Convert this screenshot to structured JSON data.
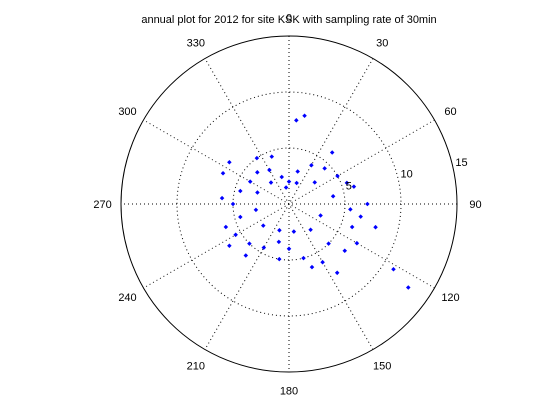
{
  "chart_data": {
    "type": "scatter",
    "subtype": "polar",
    "title": "annual plot for 2012 for site KSK with sampling rate of 30min",
    "theta_ticks": [
      "0",
      "30",
      "60",
      "90",
      "120",
      "150",
      "180",
      "210",
      "240",
      "270",
      "300",
      "330"
    ],
    "r_ticks": [
      "5",
      "10",
      "15"
    ],
    "r_max": 15,
    "angle_convention": "clockwise from north (0 at top, 90 at right)",
    "marker": "point",
    "series": [
      {
        "color": "#0000ff",
        "points_theta_r": [
          [
            0,
            2
          ],
          [
            15,
            3
          ],
          [
            30,
            4
          ],
          [
            45,
            4.5
          ],
          [
            60,
            5
          ],
          [
            75,
            6
          ],
          [
            90,
            7
          ],
          [
            100,
            6.5
          ],
          [
            110,
            6
          ],
          [
            120,
            7
          ],
          [
            125,
            13
          ],
          [
            122,
            11
          ],
          [
            135,
            5
          ],
          [
            150,
            6
          ],
          [
            165,
            5
          ],
          [
            180,
            4
          ],
          [
            195,
            3.5
          ],
          [
            210,
            4.5
          ],
          [
            225,
            5
          ],
          [
            240,
            5.5
          ],
          [
            255,
            4.5
          ],
          [
            270,
            5
          ],
          [
            285,
            4.5
          ],
          [
            300,
            4
          ],
          [
            315,
            4
          ],
          [
            330,
            3.5
          ],
          [
            345,
            2.5
          ],
          [
            20,
            2
          ],
          [
            50,
            3
          ],
          [
            80,
            4
          ],
          [
            110,
            3
          ],
          [
            140,
            3
          ],
          [
            170,
            2.5
          ],
          [
            200,
            2.5
          ],
          [
            230,
            3
          ],
          [
            260,
            3
          ],
          [
            290,
            3
          ],
          [
            320,
            2.5
          ],
          [
            350,
            1.5
          ],
          [
            10,
            8
          ],
          [
            5,
            7.5
          ],
          [
            40,
            6
          ],
          [
            70,
            5.5
          ],
          [
            95,
            5.5
          ],
          [
            105,
            8
          ],
          [
            130,
            6.5
          ],
          [
            145,
            7.5
          ],
          [
            160,
            6
          ],
          [
            190,
            5
          ],
          [
            220,
            6
          ],
          [
            235,
            6.5
          ],
          [
            250,
            6
          ],
          [
            275,
            6
          ],
          [
            295,
            6.5
          ],
          [
            305,
            6.5
          ],
          [
            325,
            5
          ],
          [
            340,
            4.5
          ]
        ]
      }
    ],
    "grid": true
  }
}
